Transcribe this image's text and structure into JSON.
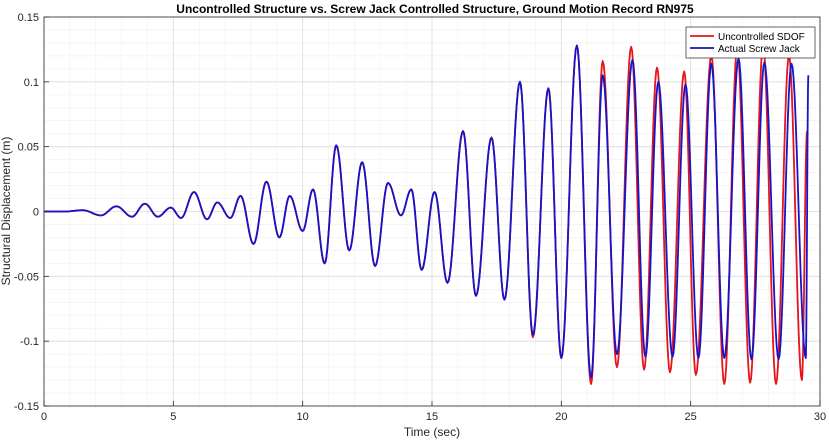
{
  "chart_data": {
    "type": "line",
    "title": "Uncontrolled Structure vs. Screw Jack Controlled Structure, Ground Motion Record RN975",
    "xlabel": "Time (sec)",
    "ylabel": "Structural Displacement (m)",
    "xlim": [
      0,
      30
    ],
    "ylim": [
      -0.15,
      0.15
    ],
    "x_ticks": [
      "0",
      "5",
      "10",
      "15",
      "20",
      "25",
      "30"
    ],
    "y_ticks": [
      "-0.15",
      "-0.1",
      "-0.05",
      "0",
      "0.05",
      "0.1",
      "0.15"
    ],
    "grid": true,
    "minor_grid": true,
    "legend_position": "top-right",
    "series": [
      {
        "name": "Uncontrolled SDOF",
        "color": "#e8141b",
        "peaks": [
          [
            0.0,
            0.0
          ],
          [
            0.8,
            0.0
          ],
          [
            1.5,
            0.001
          ],
          [
            2.2,
            -0.003
          ],
          [
            2.8,
            0.004
          ],
          [
            3.4,
            -0.004
          ],
          [
            3.9,
            0.006
          ],
          [
            4.4,
            -0.004
          ],
          [
            4.9,
            0.003
          ],
          [
            5.3,
            -0.005
          ],
          [
            5.8,
            0.015
          ],
          [
            6.3,
            -0.006
          ],
          [
            6.7,
            0.007
          ],
          [
            7.2,
            -0.005
          ],
          [
            7.6,
            0.012
          ],
          [
            8.1,
            -0.025
          ],
          [
            8.6,
            0.023
          ],
          [
            9.1,
            -0.02
          ],
          [
            9.5,
            0.012
          ],
          [
            10.0,
            -0.015
          ],
          [
            10.4,
            0.017
          ],
          [
            10.85,
            -0.04
          ],
          [
            11.3,
            0.051
          ],
          [
            11.8,
            -0.03
          ],
          [
            12.3,
            0.038
          ],
          [
            12.8,
            -0.042
          ],
          [
            13.3,
            0.022
          ],
          [
            13.8,
            -0.003
          ],
          [
            14.2,
            0.017
          ],
          [
            14.6,
            -0.045
          ],
          [
            15.1,
            0.015
          ],
          [
            15.6,
            -0.055
          ],
          [
            16.2,
            0.062
          ],
          [
            16.7,
            -0.065
          ],
          [
            17.3,
            0.057
          ],
          [
            17.8,
            -0.068
          ],
          [
            18.4,
            0.1
          ],
          [
            18.9,
            -0.097
          ],
          [
            19.5,
            0.095
          ],
          [
            20.0,
            -0.113
          ],
          [
            20.6,
            0.128
          ],
          [
            21.15,
            -0.133
          ],
          [
            21.6,
            0.116
          ],
          [
            22.15,
            -0.12
          ],
          [
            22.7,
            0.127
          ],
          [
            23.2,
            -0.122
          ],
          [
            23.7,
            0.111
          ],
          [
            24.2,
            -0.124
          ],
          [
            24.75,
            0.108
          ],
          [
            25.2,
            -0.126
          ],
          [
            25.8,
            0.12
          ],
          [
            26.3,
            -0.133
          ],
          [
            26.8,
            0.126
          ],
          [
            27.3,
            -0.132
          ],
          [
            27.8,
            0.128
          ],
          [
            28.3,
            -0.133
          ],
          [
            28.8,
            0.12
          ],
          [
            29.3,
            -0.13
          ],
          [
            29.5,
            0.062
          ]
        ]
      },
      {
        "name": "Actual Screw Jack",
        "color": "#1414c8",
        "peaks": [
          [
            0.0,
            0.0
          ],
          [
            0.8,
            0.0
          ],
          [
            1.5,
            0.001
          ],
          [
            2.2,
            -0.003
          ],
          [
            2.8,
            0.004
          ],
          [
            3.4,
            -0.004
          ],
          [
            3.9,
            0.006
          ],
          [
            4.4,
            -0.004
          ],
          [
            4.9,
            0.003
          ],
          [
            5.3,
            -0.005
          ],
          [
            5.8,
            0.015
          ],
          [
            6.3,
            -0.006
          ],
          [
            6.7,
            0.007
          ],
          [
            7.2,
            -0.005
          ],
          [
            7.6,
            0.012
          ],
          [
            8.1,
            -0.025
          ],
          [
            8.6,
            0.023
          ],
          [
            9.1,
            -0.02
          ],
          [
            9.5,
            0.012
          ],
          [
            10.0,
            -0.015
          ],
          [
            10.4,
            0.017
          ],
          [
            10.85,
            -0.04
          ],
          [
            11.3,
            0.051
          ],
          [
            11.8,
            -0.03
          ],
          [
            12.3,
            0.038
          ],
          [
            12.8,
            -0.042
          ],
          [
            13.3,
            0.022
          ],
          [
            13.8,
            -0.003
          ],
          [
            14.2,
            0.017
          ],
          [
            14.6,
            -0.045
          ],
          [
            15.1,
            0.015
          ],
          [
            15.6,
            -0.055
          ],
          [
            16.2,
            0.062
          ],
          [
            16.7,
            -0.065
          ],
          [
            17.3,
            0.057
          ],
          [
            17.8,
            -0.068
          ],
          [
            18.4,
            0.1
          ],
          [
            18.9,
            -0.095
          ],
          [
            19.5,
            0.095
          ],
          [
            20.0,
            -0.113
          ],
          [
            20.6,
            0.128
          ],
          [
            21.15,
            -0.128
          ],
          [
            21.6,
            0.105
          ],
          [
            22.15,
            -0.11
          ],
          [
            22.75,
            0.117
          ],
          [
            23.25,
            -0.112
          ],
          [
            23.75,
            0.1
          ],
          [
            24.3,
            -0.112
          ],
          [
            24.8,
            0.098
          ],
          [
            25.3,
            -0.113
          ],
          [
            25.8,
            0.114
          ],
          [
            26.3,
            -0.113
          ],
          [
            26.85,
            0.118
          ],
          [
            27.35,
            -0.114
          ],
          [
            27.85,
            0.115
          ],
          [
            28.4,
            -0.114
          ],
          [
            28.9,
            0.114
          ],
          [
            29.45,
            -0.113
          ],
          [
            29.55,
            0.105
          ]
        ]
      }
    ]
  }
}
